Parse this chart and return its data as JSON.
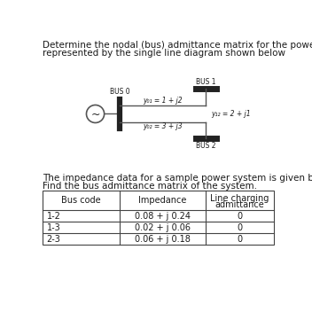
{
  "title_line1": "Determine the nodal (bus) admittance matrix for the power s",
  "title_line2": "represented by the single line diagram shown below",
  "diagram": {
    "bus0_label": "BUS 0",
    "bus1_label": "BUS 1",
    "bus2_label": "BUS 2",
    "y01_label": "y₀₁ = 1 + j2",
    "y02_label": "y₀₂ = 3 + j3",
    "y12_label": "y₁₂ = 2 + j1"
  },
  "text2_line1": "The impedance data for a sample power system is given belo",
  "text2_line2": "Find the bus admittance matrix of the system.",
  "table_headers": [
    "Bus code",
    "Impedance",
    "Line charging\nadmittance"
  ],
  "table_rows": [
    [
      "1-2",
      "0.08 + j 0.24",
      "0"
    ],
    [
      "1-3",
      "0.02 + j 0.06",
      "0"
    ],
    [
      "2-3",
      "0.06 + j 0.18",
      "0"
    ]
  ],
  "bg_color": "#ffffff",
  "text_color": "#1a1a1a",
  "line_color": "#555555",
  "bus_bar_color": "#222222",
  "table_line_color": "#444444"
}
